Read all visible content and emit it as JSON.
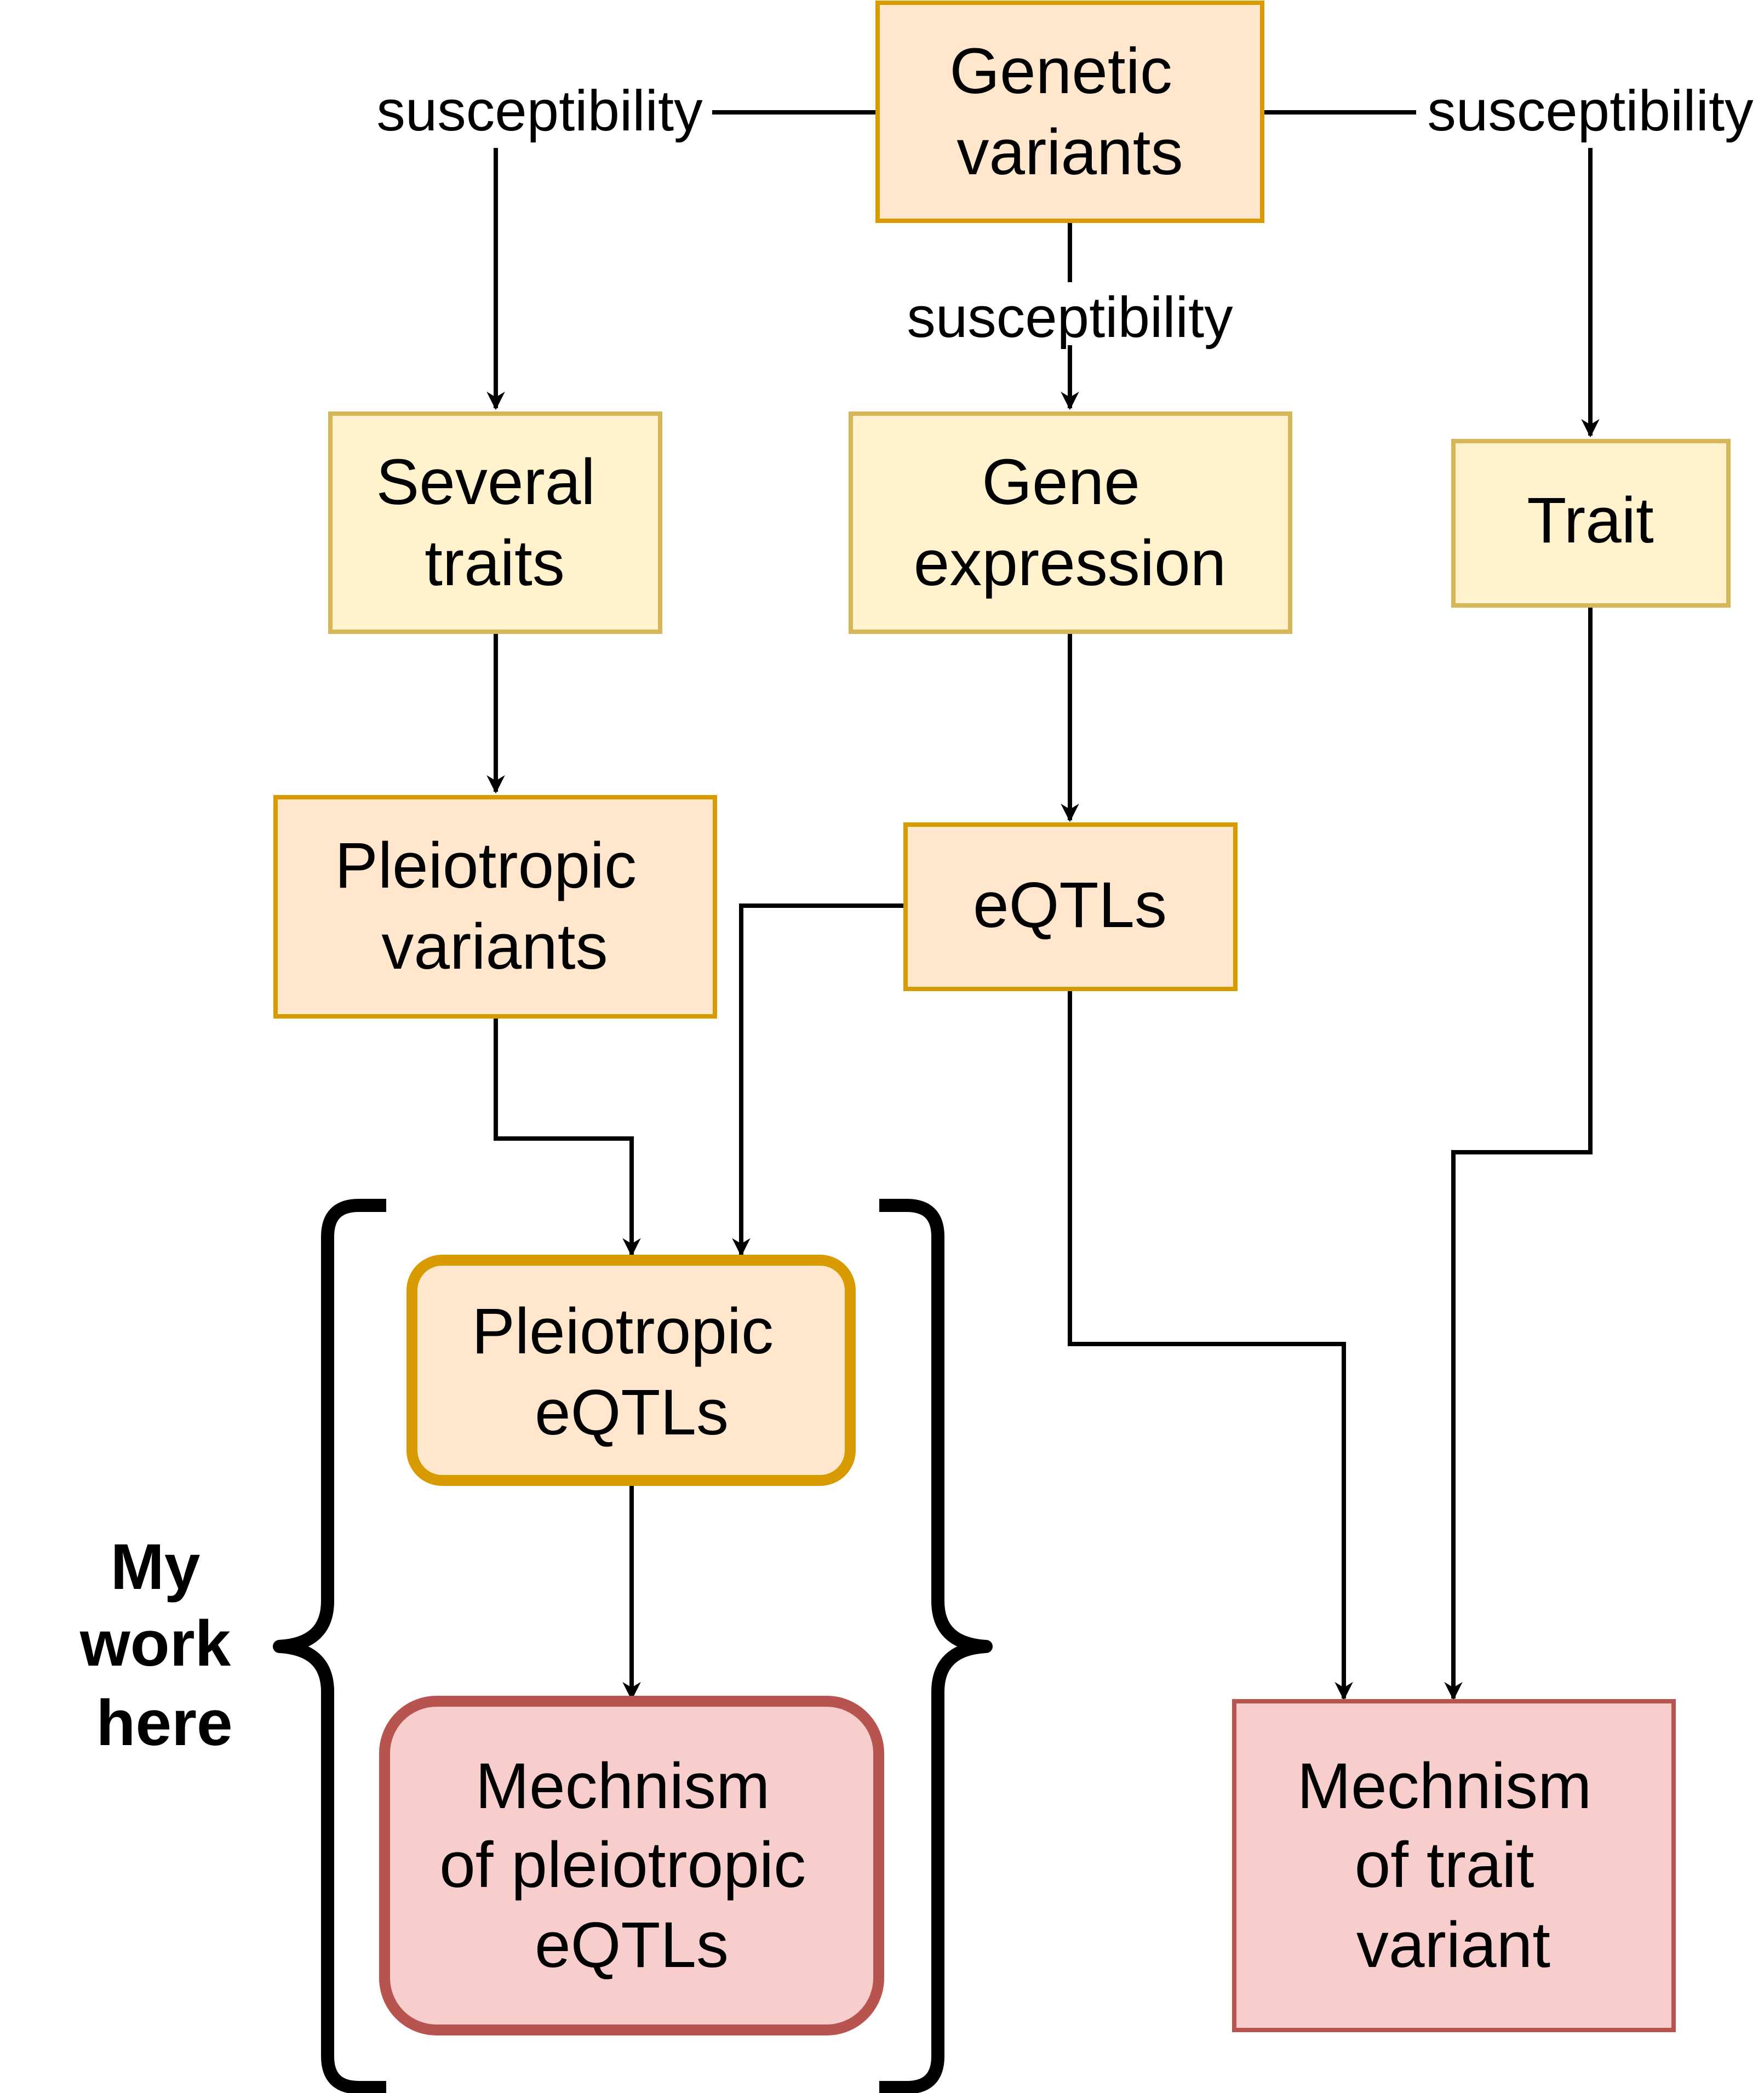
{
  "colors": {
    "orange_fill": "#ffe6cc",
    "orange_stroke": "#d79b00",
    "yellow_fill": "#fff2cc",
    "yellow_stroke": "#d6b656",
    "red_fill": "#f8cecc",
    "red_stroke": "#b85450",
    "line": "#000000"
  },
  "nodes": {
    "genetic_variants": [
      "Genetic",
      "variants"
    ],
    "several_traits": [
      "Several",
      "traits"
    ],
    "gene_expression": [
      "Gene",
      "expression"
    ],
    "trait": [
      "Trait"
    ],
    "pleiotropic_variants": [
      "Pleiotropic",
      "variants"
    ],
    "eqtls": [
      "eQTLs"
    ],
    "pleiotropic_eqtls": [
      "Pleiotropic",
      "eQTLs"
    ],
    "mechanism_pleiotropic": [
      "Mechnism",
      "of pleiotropic",
      "eQTLs"
    ],
    "mechanism_trait": [
      "Mechnism",
      "of trait",
      "variant"
    ]
  },
  "edge_labels": {
    "left": "susceptibility",
    "center": "susceptibility",
    "right": "susceptibility"
  },
  "bracket_label": [
    "My",
    "work",
    "here"
  ]
}
